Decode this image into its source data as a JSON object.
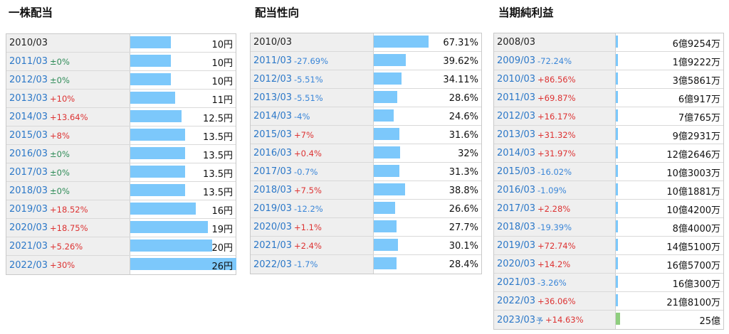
{
  "dividend": {
    "title": "一株配当",
    "max_value": 26,
    "rows": [
      {
        "year": "2010/03",
        "change": "",
        "change_sign": "none",
        "value": 10,
        "value_label": "10円"
      },
      {
        "year": "2011/03",
        "change": "±0%",
        "change_sign": "zero",
        "value": 10,
        "value_label": "10円"
      },
      {
        "year": "2012/03",
        "change": "±0%",
        "change_sign": "zero",
        "value": 10,
        "value_label": "10円"
      },
      {
        "year": "2013/03",
        "change": "+10%",
        "change_sign": "pos",
        "value": 11,
        "value_label": "11円"
      },
      {
        "year": "2014/03",
        "change": "+13.64%",
        "change_sign": "pos",
        "value": 12.5,
        "value_label": "12.5円"
      },
      {
        "year": "2015/03",
        "change": "+8%",
        "change_sign": "pos",
        "value": 13.5,
        "value_label": "13.5円"
      },
      {
        "year": "2016/03",
        "change": "±0%",
        "change_sign": "zero",
        "value": 13.5,
        "value_label": "13.5円"
      },
      {
        "year": "2017/03",
        "change": "±0%",
        "change_sign": "zero",
        "value": 13.5,
        "value_label": "13.5円"
      },
      {
        "year": "2018/03",
        "change": "±0%",
        "change_sign": "zero",
        "value": 13.5,
        "value_label": "13.5円"
      },
      {
        "year": "2019/03",
        "change": "+18.52%",
        "change_sign": "pos",
        "value": 16,
        "value_label": "16円"
      },
      {
        "year": "2020/03",
        "change": "+18.75%",
        "change_sign": "pos",
        "value": 19,
        "value_label": "19円"
      },
      {
        "year": "2021/03",
        "change": "+5.26%",
        "change_sign": "pos",
        "value": 20,
        "value_label": "20円"
      },
      {
        "year": "2022/03",
        "change": "+30%",
        "change_sign": "pos",
        "value": 26,
        "value_label": "26円"
      }
    ]
  },
  "payout": {
    "title": "配当性向",
    "max_value": 67.31,
    "rows": [
      {
        "year": "2010/03",
        "change": "",
        "change_sign": "none",
        "value": 67.31,
        "value_label": "67.31%"
      },
      {
        "year": "2011/03",
        "change": "-27.69%",
        "change_sign": "neg",
        "value": 39.62,
        "value_label": "39.62%"
      },
      {
        "year": "2012/03",
        "change": "-5.51%",
        "change_sign": "neg",
        "value": 34.11,
        "value_label": "34.11%"
      },
      {
        "year": "2013/03",
        "change": "-5.51%",
        "change_sign": "neg",
        "value": 28.6,
        "value_label": "28.6%"
      },
      {
        "year": "2014/03",
        "change": "-4%",
        "change_sign": "neg",
        "value": 24.6,
        "value_label": "24.6%"
      },
      {
        "year": "2015/03",
        "change": "+7%",
        "change_sign": "pos",
        "value": 31.6,
        "value_label": "31.6%"
      },
      {
        "year": "2016/03",
        "change": "+0.4%",
        "change_sign": "pos",
        "value": 32,
        "value_label": "32%"
      },
      {
        "year": "2017/03",
        "change": "-0.7%",
        "change_sign": "neg",
        "value": 31.3,
        "value_label": "31.3%"
      },
      {
        "year": "2018/03",
        "change": "+7.5%",
        "change_sign": "pos",
        "value": 38.8,
        "value_label": "38.8%"
      },
      {
        "year": "2019/03",
        "change": "-12.2%",
        "change_sign": "neg",
        "value": 26.6,
        "value_label": "26.6%"
      },
      {
        "year": "2020/03",
        "change": "+1.1%",
        "change_sign": "pos",
        "value": 27.7,
        "value_label": "27.7%"
      },
      {
        "year": "2021/03",
        "change": "+2.4%",
        "change_sign": "pos",
        "value": 30.1,
        "value_label": "30.1%"
      },
      {
        "year": "2022/03",
        "change": "-1.7%",
        "change_sign": "neg",
        "value": 28.4,
        "value_label": "28.4%"
      }
    ]
  },
  "profit": {
    "title": "当期純利益",
    "forecast_mark": "予",
    "max_value": 2500000000,
    "rows": [
      {
        "year": "2008/03",
        "change": "",
        "change_sign": "none",
        "value": 692540000,
        "value_label": "6億9254万",
        "forecast": false
      },
      {
        "year": "2009/03",
        "change": "-72.24%",
        "change_sign": "neg",
        "value": 192220000,
        "value_label": "1億9222万",
        "forecast": false
      },
      {
        "year": "2010/03",
        "change": "+86.56%",
        "change_sign": "pos",
        "value": 358610000,
        "value_label": "3億5861万",
        "forecast": false
      },
      {
        "year": "2011/03",
        "change": "+69.87%",
        "change_sign": "pos",
        "value": 609170000,
        "value_label": "6億917万",
        "forecast": false
      },
      {
        "year": "2012/03",
        "change": "+16.17%",
        "change_sign": "pos",
        "value": 707650000,
        "value_label": "7億765万",
        "forecast": false
      },
      {
        "year": "2013/03",
        "change": "+31.32%",
        "change_sign": "pos",
        "value": 929310000,
        "value_label": "9億2931万",
        "forecast": false
      },
      {
        "year": "2014/03",
        "change": "+31.97%",
        "change_sign": "pos",
        "value": 1226460000,
        "value_label": "12億2646万",
        "forecast": false
      },
      {
        "year": "2015/03",
        "change": "-16.02%",
        "change_sign": "neg",
        "value": 1030030000,
        "value_label": "10億3003万",
        "forecast": false
      },
      {
        "year": "2016/03",
        "change": "-1.09%",
        "change_sign": "neg",
        "value": 1018810000,
        "value_label": "10億1881万",
        "forecast": false
      },
      {
        "year": "2017/03",
        "change": "+2.28%",
        "change_sign": "pos",
        "value": 1042000000,
        "value_label": "10億4200万",
        "forecast": false
      },
      {
        "year": "2018/03",
        "change": "-19.39%",
        "change_sign": "neg",
        "value": 840000000,
        "value_label": "8億4000万",
        "forecast": false
      },
      {
        "year": "2019/03",
        "change": "+72.74%",
        "change_sign": "pos",
        "value": 1451000000,
        "value_label": "14億5100万",
        "forecast": false
      },
      {
        "year": "2020/03",
        "change": "+14.2%",
        "change_sign": "pos",
        "value": 1657000000,
        "value_label": "16億5700万",
        "forecast": false
      },
      {
        "year": "2021/03",
        "change": "-3.26%",
        "change_sign": "neg",
        "value": 1603000000,
        "value_label": "16億300万",
        "forecast": false
      },
      {
        "year": "2022/03",
        "change": "+36.06%",
        "change_sign": "pos",
        "value": 2181000000,
        "value_label": "21億8100万",
        "forecast": false
      },
      {
        "year": "2023/03",
        "change": "+14.63%",
        "change_sign": "pos",
        "value": 2500000000,
        "value_label": "25億",
        "forecast": true
      }
    ]
  },
  "colors": {
    "bar": "#7cc8fb",
    "forecast_bar": "#8fce7f",
    "positive": "#dd3333",
    "negative": "#3a86d8",
    "zero": "#2e8b57",
    "year_link": "#2c78c8"
  }
}
